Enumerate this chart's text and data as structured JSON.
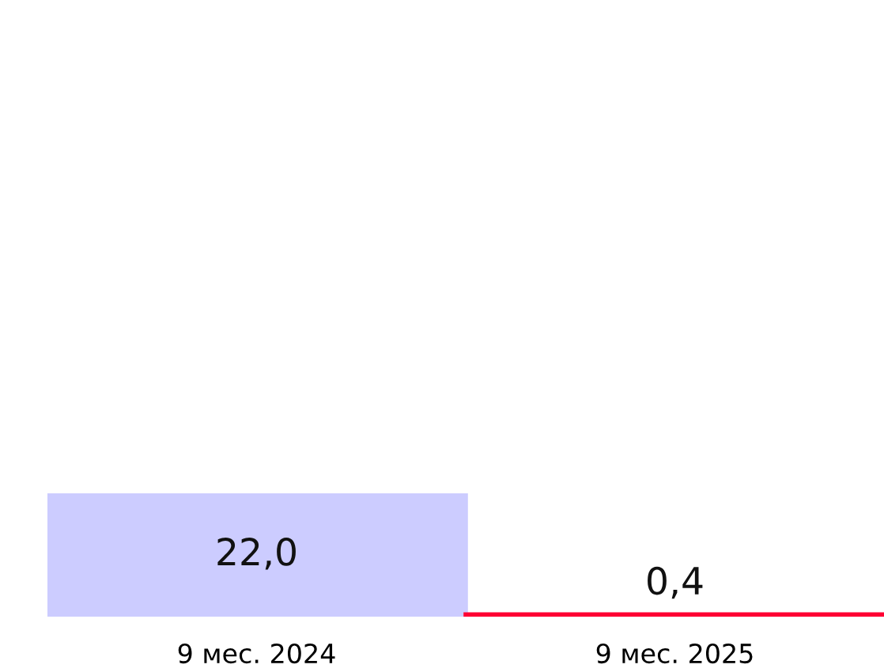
{
  "chart_data": {
    "type": "bar",
    "categories": [
      "9 мес. 2024",
      "9 мес. 2025"
    ],
    "values": [
      22.0,
      0.4
    ],
    "colors": [
      "#ccccff",
      "#ff0033"
    ],
    "value_labels": [
      "22,0",
      "0,4"
    ]
  }
}
